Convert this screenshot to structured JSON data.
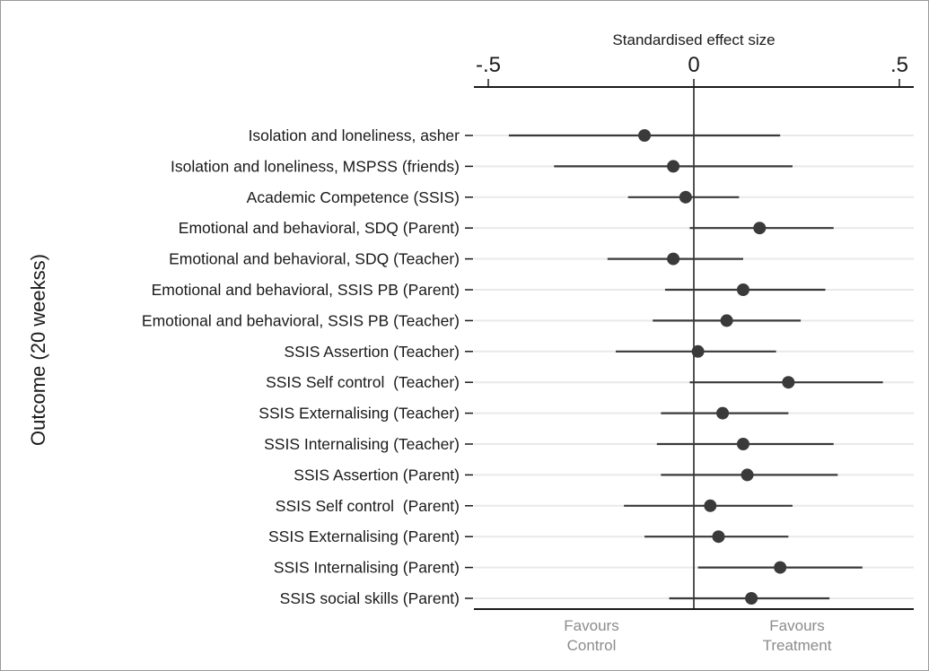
{
  "chart_data": {
    "type": "forest",
    "title": "Standardised effect size",
    "xlabel": "Standardised effect size",
    "ylabel": "Outcome (20 weekss)",
    "xlim": [
      -0.5,
      0.5
    ],
    "x_ticks": [
      {
        "value": -0.5,
        "label": "-.5"
      },
      {
        "value": 0,
        "label": "0"
      },
      {
        "value": 0.5,
        "label": ".5"
      }
    ],
    "favour_labels": {
      "left_line1": "Favours",
      "left_line2": "Control",
      "right_line1": "Favours",
      "right_line2": "Treatment"
    },
    "grid": true,
    "reference_line": 0,
    "outcomes": [
      {
        "label": "Isolation and loneliness, asher",
        "estimate": -0.12,
        "lower": -0.45,
        "upper": 0.21
      },
      {
        "label": "Isolation and loneliness, MSPSS (friends)",
        "estimate": -0.05,
        "lower": -0.34,
        "upper": 0.24
      },
      {
        "label": "Academic Competence (SSIS)",
        "estimate": -0.02,
        "lower": -0.16,
        "upper": 0.11
      },
      {
        "label": "Emotional and behavioral, SDQ (Parent)",
        "estimate": 0.16,
        "lower": -0.01,
        "upper": 0.34
      },
      {
        "label": "Emotional and behavioral, SDQ (Teacher)",
        "estimate": -0.05,
        "lower": -0.21,
        "upper": 0.12
      },
      {
        "label": "Emotional and behavioral, SSIS PB (Parent)",
        "estimate": 0.12,
        "lower": -0.07,
        "upper": 0.32
      },
      {
        "label": "Emotional and behavioral, SSIS PB (Teacher)",
        "estimate": 0.08,
        "lower": -0.1,
        "upper": 0.26
      },
      {
        "label": "SSIS Assertion (Teacher)",
        "estimate": 0.01,
        "lower": -0.19,
        "upper": 0.2
      },
      {
        "label": "SSIS Self control  (Teacher)",
        "estimate": 0.23,
        "lower": -0.01,
        "upper": 0.46
      },
      {
        "label": "SSIS Externalising (Teacher)",
        "estimate": 0.07,
        "lower": -0.08,
        "upper": 0.23
      },
      {
        "label": "SSIS Internalising (Teacher)",
        "estimate": 0.12,
        "lower": -0.09,
        "upper": 0.34
      },
      {
        "label": "SSIS Assertion (Parent)",
        "estimate": 0.13,
        "lower": -0.08,
        "upper": 0.35
      },
      {
        "label": "SSIS Self control  (Parent)",
        "estimate": 0.04,
        "lower": -0.17,
        "upper": 0.24
      },
      {
        "label": "SSIS Externalising (Parent)",
        "estimate": 0.06,
        "lower": -0.12,
        "upper": 0.23
      },
      {
        "label": "SSIS Internalising (Parent)",
        "estimate": 0.21,
        "lower": 0.01,
        "upper": 0.41
      },
      {
        "label": "SSIS social skills (Parent)",
        "estimate": 0.14,
        "lower": -0.06,
        "upper": 0.33
      }
    ]
  },
  "colors": {
    "marker": "#3a3a3a",
    "ci_line": "#3a3a3a",
    "grid": "#e9e9e9",
    "axis": "#1a1a1a",
    "favour_text": "#8c8c8c"
  }
}
